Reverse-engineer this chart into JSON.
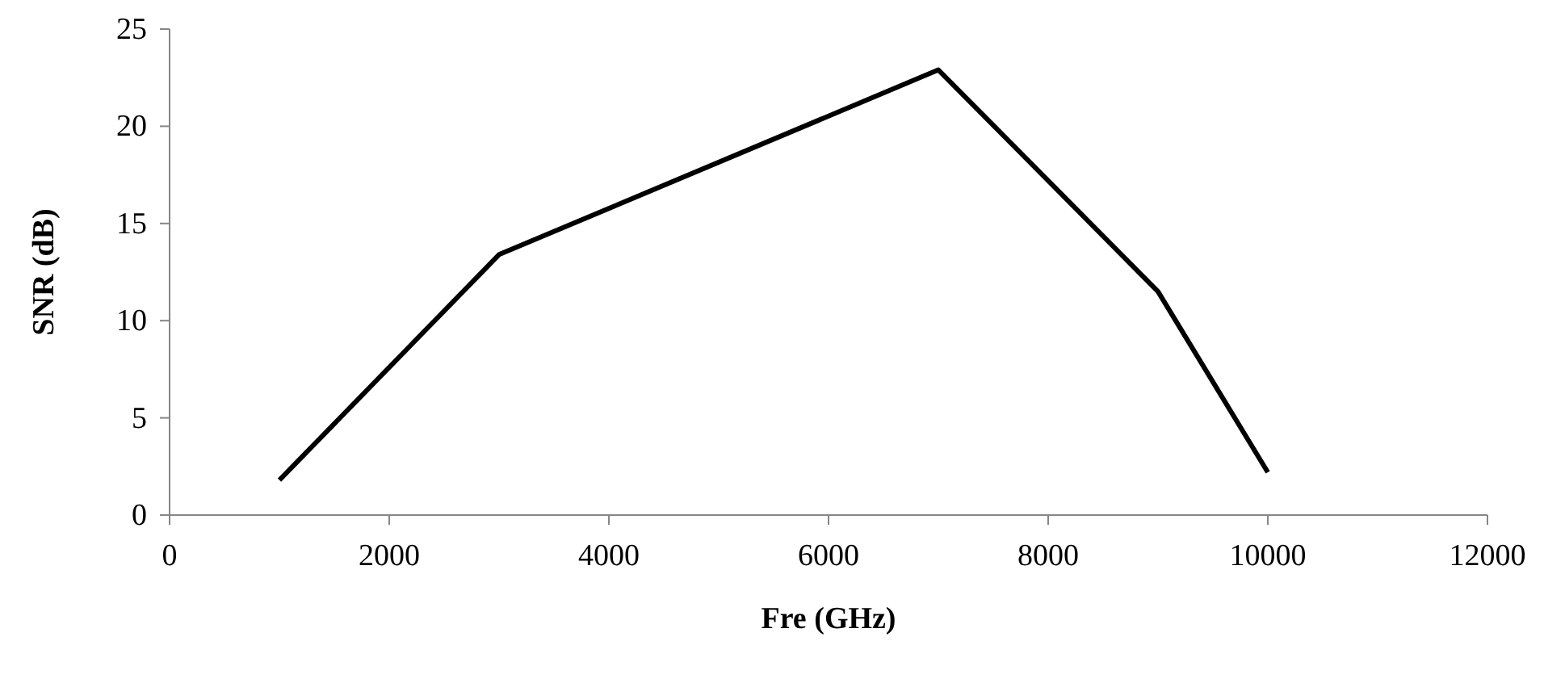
{
  "chart_data": {
    "type": "line",
    "xlabel": "Fre (GHz)",
    "ylabel": "SNR (dB)",
    "x": [
      1000,
      3000,
      7000,
      9000,
      10000
    ],
    "series": [
      {
        "color": "#000000",
        "values": [
          1.8,
          13.4,
          22.9,
          11.5,
          2.2
        ]
      }
    ],
    "xlim": [
      0,
      12000
    ],
    "xticks": [
      0,
      2000,
      4000,
      6000,
      8000,
      10000,
      12000
    ],
    "ylim": [
      0,
      25
    ],
    "yticks": [
      0,
      5,
      10,
      15,
      20,
      25
    ],
    "grid": false,
    "marker": "none",
    "line_style": "solid"
  }
}
